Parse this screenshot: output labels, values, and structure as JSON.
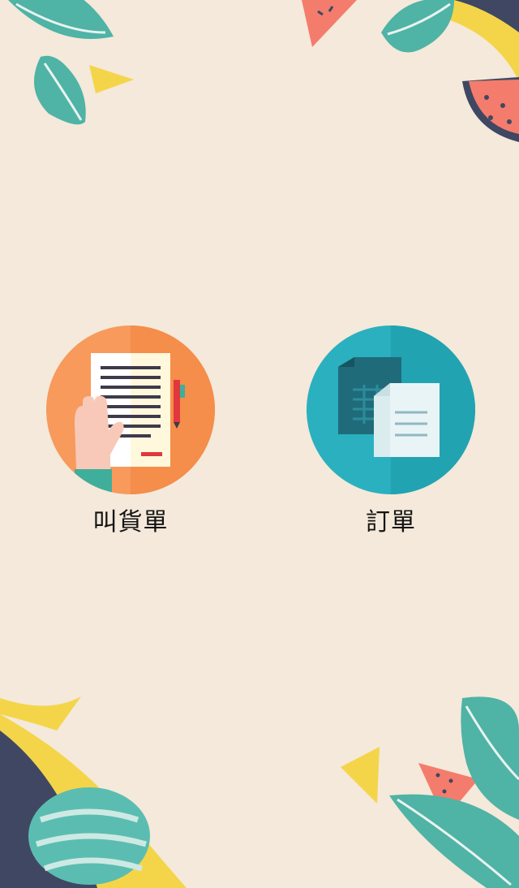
{
  "menu": {
    "items": [
      {
        "label": "叫貨單",
        "icon": "order-form-icon"
      },
      {
        "label": "訂單",
        "icon": "documents-icon"
      }
    ]
  },
  "colors": {
    "background": "#f4e9da",
    "orange_circle": "#f79a5c",
    "teal_circle": "#2bb0bf",
    "leaf": "#4fb3a6",
    "watermelon": "#f47c6c",
    "yellow": "#f4d54a",
    "navy": "#3f4763"
  }
}
